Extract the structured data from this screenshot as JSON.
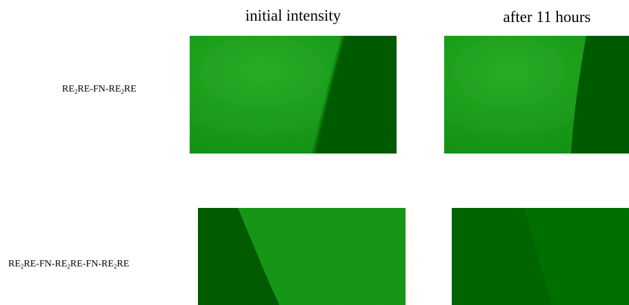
{
  "columns": [
    "initial intensity",
    "after 11 hours"
  ],
  "rows": [
    {
      "label_parts": [
        "RE",
        "2",
        "RE-FN-RE",
        "2",
        "RE"
      ]
    },
    {
      "label_parts": [
        "RE",
        "2",
        "RE-FN-RE",
        "2",
        "RE-FN-RE",
        "2",
        "RE"
      ]
    }
  ]
}
